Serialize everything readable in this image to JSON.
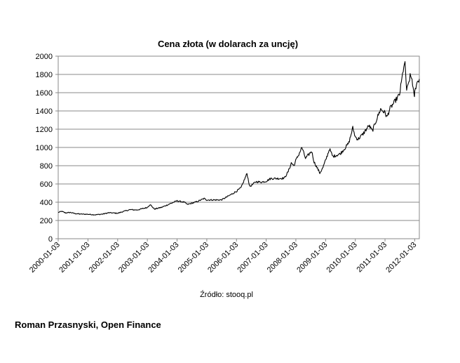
{
  "chart_data": {
    "type": "line",
    "title": "Cena złota (w dolarach za uncję)",
    "source": "Źródło: stooq.pl",
    "ylim": [
      0,
      2000
    ],
    "yticks": [
      0,
      200,
      400,
      600,
      800,
      1000,
      1200,
      1400,
      1600,
      1800,
      2000
    ],
    "xlim": [
      "2000-01-03",
      "2012-02-29"
    ],
    "xticks": [
      "2000-01-03",
      "2001-01-03",
      "2002-01-03",
      "2003-01-03",
      "2004-01-03",
      "2005-01-03",
      "2006-01-03",
      "2007-01-03",
      "2008-01-03",
      "2009-01-03",
      "2010-01-03",
      "2011-01-03",
      "2012-01-03"
    ],
    "grid": "horizontal",
    "legend": "none",
    "line_color": "#000000",
    "series": [
      {
        "x": [
          "2000-01-03",
          "2000-02-15",
          "2000-04-01",
          "2000-06-01",
          "2000-08-01",
          "2000-10-01",
          "2001-01-03",
          "2001-04-01",
          "2001-07-01",
          "2001-09-20",
          "2002-01-03",
          "2002-03-01",
          "2002-06-01",
          "2002-09-01",
          "2003-01-03",
          "2003-02-05",
          "2003-04-01",
          "2003-07-01",
          "2003-10-01",
          "2004-01-03",
          "2004-04-01",
          "2004-05-10",
          "2004-09-01",
          "2004-12-01",
          "2005-01-03",
          "2005-04-01",
          "2005-07-01",
          "2005-10-01",
          "2006-01-03",
          "2006-03-01",
          "2006-05-12",
          "2006-06-15",
          "2006-09-01",
          "2006-11-01",
          "2007-01-03",
          "2007-03-01",
          "2007-06-15",
          "2007-08-15",
          "2007-10-01",
          "2007-11-08",
          "2007-12-10",
          "2008-01-03",
          "2008-02-01",
          "2008-03-17",
          "2008-05-01",
          "2008-07-15",
          "2008-08-15",
          "2008-10-24",
          "2008-12-01",
          "2009-01-03",
          "2009-02-20",
          "2009-04-01",
          "2009-07-01",
          "2009-09-01",
          "2009-10-15",
          "2009-12-03",
          "2010-01-03",
          "2010-02-05",
          "2010-04-01",
          "2010-06-20",
          "2010-08-01",
          "2010-10-01",
          "2010-11-10",
          "2011-01-03",
          "2011-01-28",
          "2011-03-01",
          "2011-05-01",
          "2011-07-01",
          "2011-08-22",
          "2011-09-06",
          "2011-09-26",
          "2011-10-10",
          "2011-11-08",
          "2011-12-01",
          "2011-12-29",
          "2012-01-03",
          "2012-01-25",
          "2012-02-29"
        ],
        "values": [
          288,
          300,
          283,
          288,
          275,
          270,
          268,
          262,
          270,
          285,
          279,
          295,
          318,
          315,
          343,
          375,
          325,
          345,
          380,
          415,
          400,
          375,
          405,
          440,
          425,
          425,
          425,
          470,
          520,
          560,
          715,
          570,
          625,
          620,
          630,
          660,
          660,
          665,
          735,
          830,
          800,
          860,
          910,
          1000,
          880,
          960,
          840,
          720,
          780,
          860,
          985,
          900,
          930,
          995,
          1050,
          1215,
          1115,
          1090,
          1140,
          1240,
          1180,
          1330,
          1420,
          1380,
          1330,
          1420,
          1500,
          1580,
          1890,
          1910,
          1630,
          1660,
          1780,
          1750,
          1540,
          1600,
          1700,
          1750
        ]
      }
    ]
  },
  "footer": {
    "author": "Roman Przasnyski, Open Finance"
  }
}
